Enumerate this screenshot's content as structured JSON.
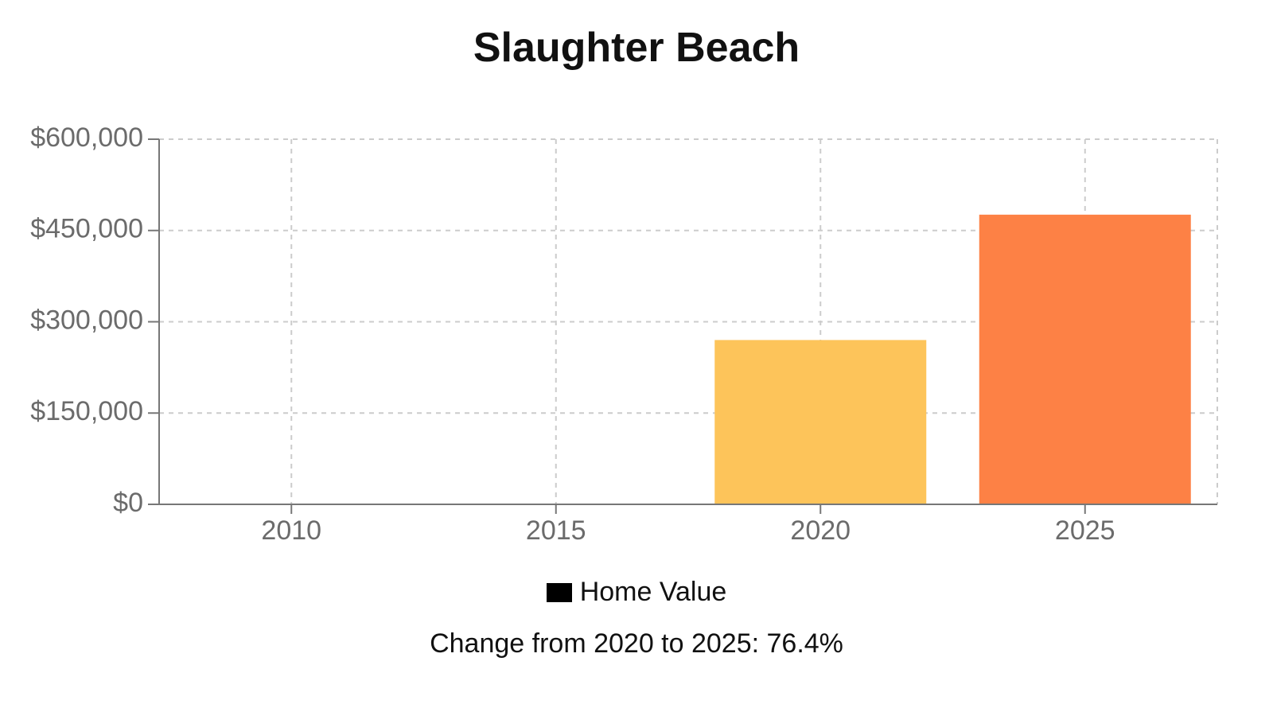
{
  "chart_data": {
    "type": "bar",
    "title": "Slaughter Beach",
    "categories": [
      "2010",
      "2015",
      "2020",
      "2025"
    ],
    "series": [
      {
        "name": "Home Value",
        "values": [
          null,
          null,
          270000,
          476000
        ],
        "colors": [
          null,
          null,
          "#fdc45a",
          "#fd8145"
        ]
      }
    ],
    "y_ticks": [
      "$0",
      "$150,000",
      "$300,000",
      "$450,000",
      "$600,000"
    ],
    "ylim": [
      0,
      600000
    ],
    "grid": true,
    "legend": {
      "label": "Home Value",
      "placement": "bottom-center",
      "swatch_color": "#000000"
    },
    "annotation": "Change from 2020 to 2025: 76.4%"
  }
}
